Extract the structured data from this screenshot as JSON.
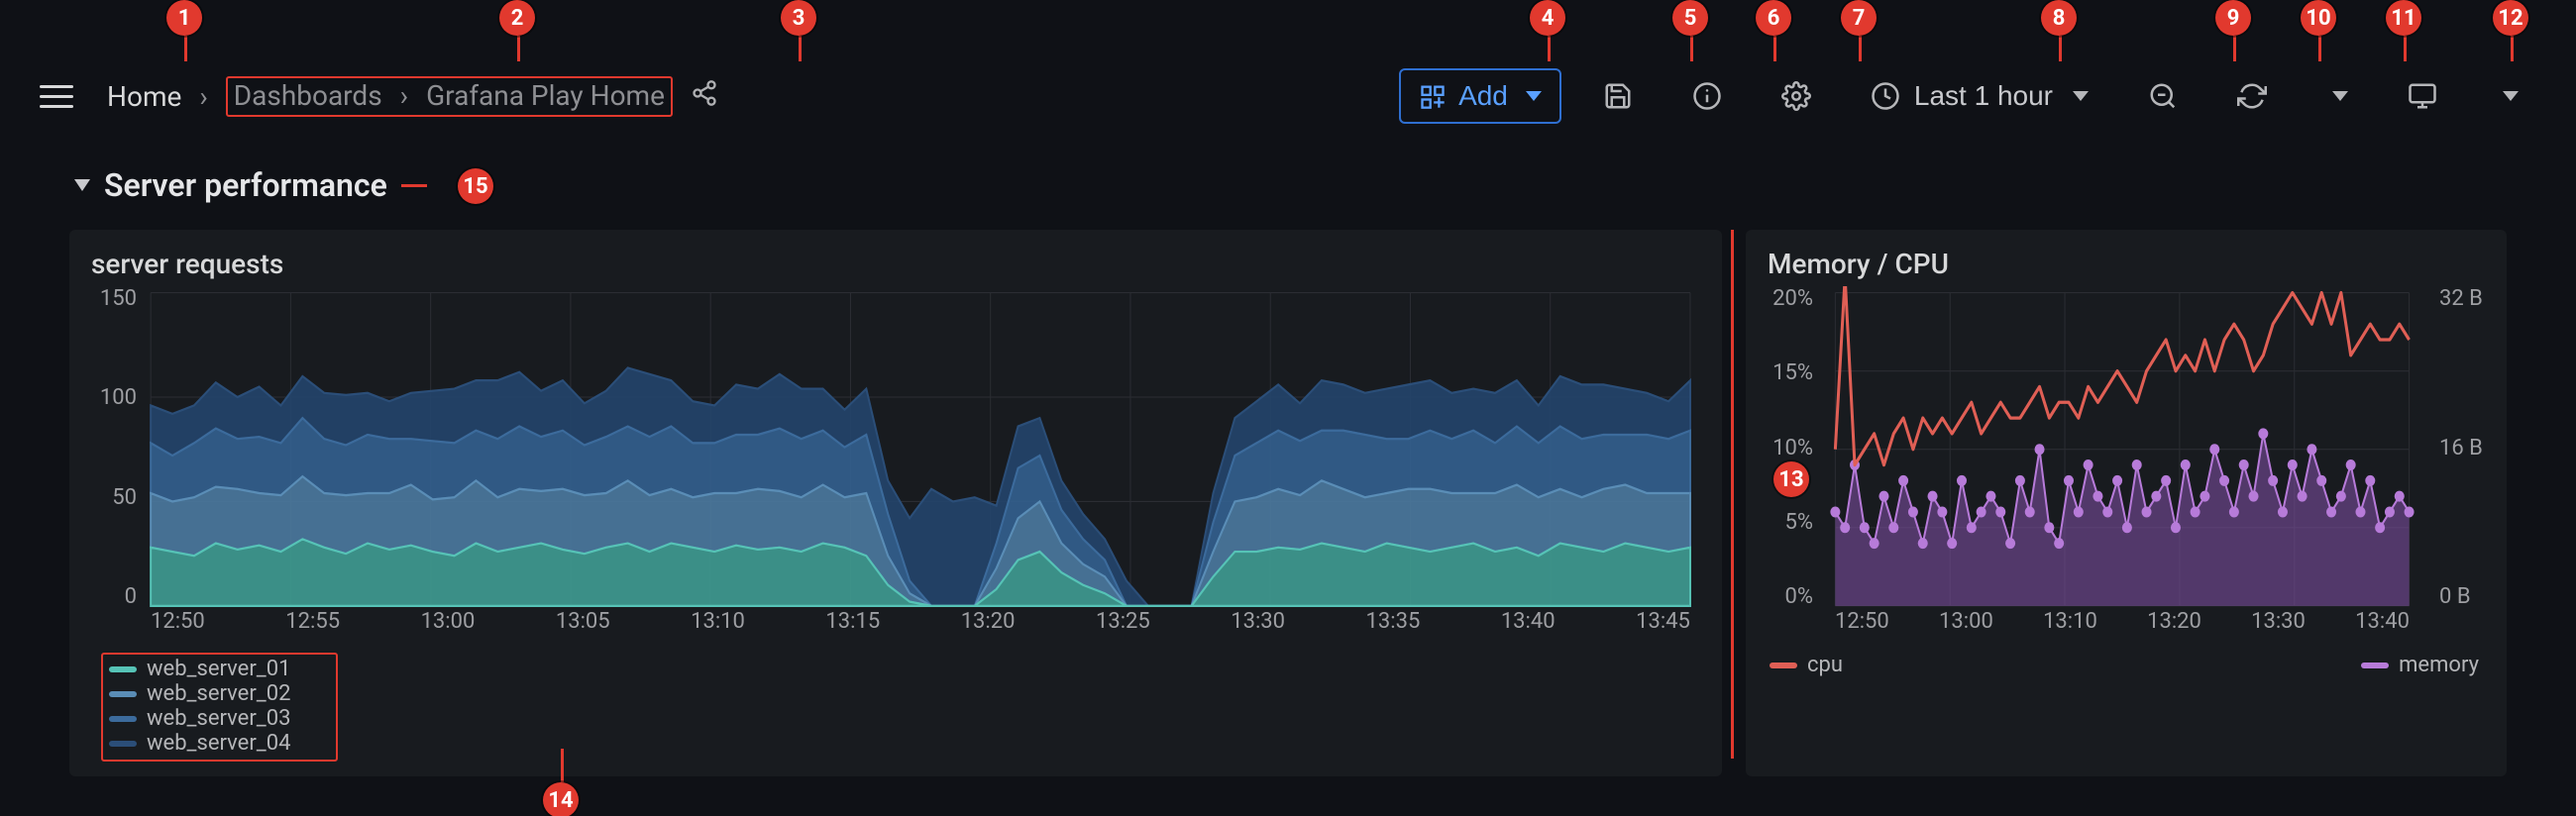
{
  "callouts": [
    "1",
    "2",
    "3",
    "4",
    "5",
    "6",
    "7",
    "8",
    "9",
    "10",
    "11",
    "12",
    "13",
    "14",
    "15"
  ],
  "colors": {
    "bg": "#0f1116",
    "panel_bg": "#181b1f",
    "text": "#d8d9da",
    "muted": "#8e8f93",
    "grid": "#2b2d33",
    "callout": "#e1392e",
    "accent_blue": "#5aa0ff"
  },
  "header": {
    "breadcrumbs": {
      "home": "Home",
      "dashboards": "Dashboards",
      "current": "Grafana Play Home"
    },
    "add_label": "Add",
    "timerange_label": "Last 1 hour"
  },
  "row_title": "Server performance",
  "panels": {
    "server_requests": {
      "title": "server requests",
      "type": "stacked_area",
      "ylabel_ticks": [
        "150",
        "100",
        "50",
        "0"
      ],
      "ylim": [
        0,
        150
      ],
      "x_ticks": [
        "12:50",
        "12:55",
        "13:00",
        "13:05",
        "13:10",
        "13:15",
        "13:20",
        "13:25",
        "13:30",
        "13:35",
        "13:40",
        "13:45"
      ],
      "series": [
        {
          "name": "web_server_01",
          "color": "#56c3b6",
          "fill": "#3f9c92",
          "stroke_width": 2
        },
        {
          "name": "web_server_02",
          "color": "#5a8db6",
          "fill": "#4b7aa0",
          "stroke_width": 2
        },
        {
          "name": "web_server_03",
          "color": "#3c6b9c",
          "fill": "#33618f",
          "stroke_width": 2
        },
        {
          "name": "web_server_04",
          "color": "#2b4e78",
          "fill": "#24456b",
          "stroke_width": 2
        }
      ],
      "series1": [
        28,
        26,
        24,
        30,
        27,
        29,
        26,
        32,
        28,
        25,
        30,
        27,
        29,
        26,
        24,
        30,
        26,
        28,
        30,
        27,
        25,
        28,
        30,
        26,
        30,
        28,
        26,
        29,
        27,
        28,
        26,
        30,
        28,
        24,
        10,
        2,
        0,
        0,
        0,
        8,
        22,
        26,
        16,
        10,
        6,
        0,
        0,
        0,
        0,
        14,
        26,
        26,
        28,
        27,
        30,
        28,
        26,
        30,
        28,
        26,
        28,
        30,
        26,
        28,
        24,
        30,
        28,
        26,
        30,
        28,
        26,
        28
      ],
      "series2": [
        26,
        24,
        28,
        27,
        29,
        25,
        27,
        30,
        26,
        28,
        24,
        27,
        29,
        25,
        28,
        30,
        26,
        28,
        25,
        29,
        28,
        26,
        30,
        27,
        26,
        24,
        28,
        25,
        29,
        27,
        26,
        28,
        24,
        30,
        14,
        4,
        0,
        0,
        0,
        10,
        20,
        24,
        14,
        10,
        8,
        0,
        0,
        0,
        0,
        12,
        24,
        26,
        28,
        26,
        30,
        28,
        26,
        24,
        28,
        30,
        26,
        24,
        28,
        30,
        28,
        26,
        24,
        30,
        28,
        26,
        28,
        26
      ],
      "series3": [
        24,
        22,
        26,
        28,
        24,
        27,
        25,
        28,
        26,
        24,
        28,
        26,
        22,
        28,
        26,
        24,
        28,
        30,
        26,
        28,
        24,
        27,
        26,
        28,
        30,
        26,
        24,
        28,
        26,
        30,
        28,
        26,
        24,
        28,
        20,
        6,
        0,
        0,
        0,
        12,
        24,
        22,
        16,
        12,
        8,
        0,
        0,
        0,
        0,
        14,
        22,
        26,
        28,
        26,
        24,
        28,
        30,
        26,
        24,
        28,
        26,
        30,
        24,
        28,
        26,
        30,
        28,
        26,
        24,
        28,
        26,
        30
      ],
      "series4": [
        18,
        20,
        18,
        22,
        20,
        24,
        18,
        20,
        22,
        24,
        20,
        18,
        22,
        24,
        26,
        24,
        28,
        26,
        22,
        24,
        20,
        22,
        28,
        30,
        22,
        20,
        18,
        24,
        22,
        26,
        24,
        20,
        18,
        22,
        16,
        30,
        56,
        50,
        52,
        18,
        20,
        18,
        14,
        12,
        10,
        12,
        0,
        0,
        0,
        14,
        18,
        20,
        22,
        18,
        24,
        22,
        20,
        24,
        26,
        24,
        22,
        20,
        24,
        22,
        18,
        24,
        26,
        24,
        22,
        20,
        18,
        24
      ],
      "background_color": "#181b1f",
      "grid_color": "#2b2d33"
    },
    "memory_cpu": {
      "title": "Memory / CPU",
      "type": "line_and_area",
      "y_left_ticks": [
        "20%",
        "15%",
        "10%",
        "5%",
        "0%"
      ],
      "y_left_lim": [
        0,
        20
      ],
      "y_right_ticks": [
        "32 B",
        "16 B",
        "0 B"
      ],
      "y_right_lim": [
        0,
        32
      ],
      "x_ticks": [
        "12:50",
        "13:00",
        "13:10",
        "13:20",
        "13:30",
        "13:40"
      ],
      "cpu": {
        "name": "cpu",
        "color": "#e05f55",
        "stroke_width": 3,
        "values": [
          10,
          21,
          9,
          10,
          11,
          9,
          11,
          12,
          10,
          12,
          11,
          12,
          11,
          12,
          13,
          11,
          12,
          13,
          12,
          12,
          13,
          14,
          12,
          13,
          13,
          12,
          14,
          13,
          14,
          15,
          14,
          13,
          15,
          16,
          17,
          15,
          16,
          15,
          17,
          15,
          17,
          18,
          17,
          15,
          16,
          18,
          19,
          20,
          19,
          18,
          20,
          18,
          20,
          16,
          17,
          18,
          17,
          17,
          18,
          17
        ]
      },
      "memory": {
        "name": "memory",
        "color": "#b77bd9",
        "fill": "#7a4d9c",
        "fill_opacity": 0.6,
        "marker": "circle",
        "marker_size": 5,
        "stroke_width": 2,
        "values": [
          6,
          5,
          9,
          5,
          4,
          7,
          5,
          8,
          6,
          4,
          7,
          6,
          4,
          8,
          5,
          6,
          7,
          6,
          4,
          8,
          6,
          10,
          5,
          4,
          8,
          6,
          9,
          7,
          6,
          8,
          5,
          9,
          6,
          7,
          8,
          5,
          9,
          6,
          7,
          10,
          8,
          6,
          9,
          7,
          11,
          8,
          6,
          9,
          7,
          10,
          8,
          6,
          7,
          9,
          6,
          8,
          5,
          6,
          7,
          6
        ]
      },
      "background_color": "#181b1f",
      "grid_color": "#2b2d33"
    }
  }
}
